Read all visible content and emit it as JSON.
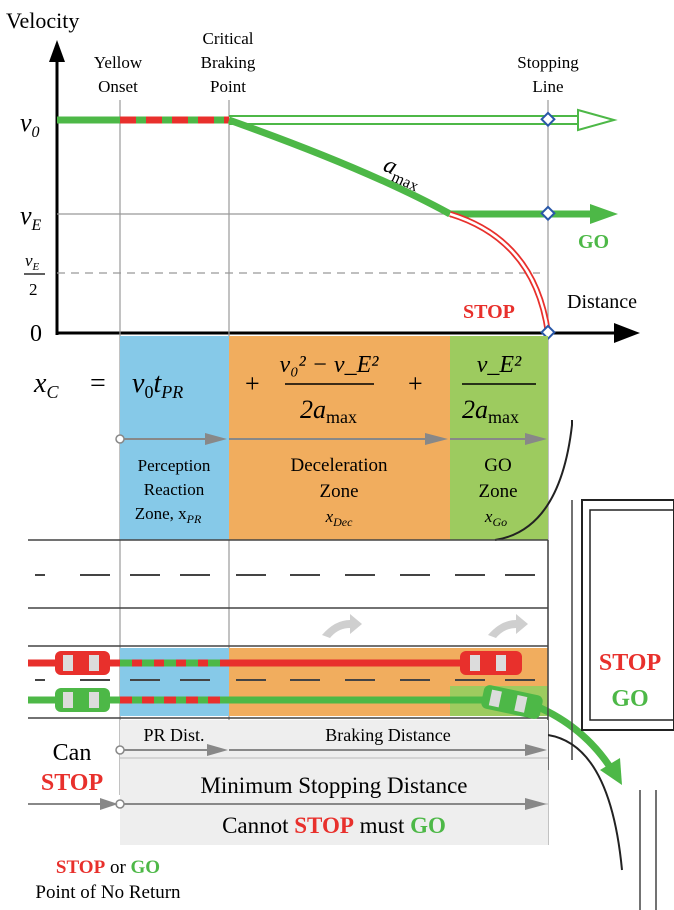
{
  "axes": {
    "y_label": "Velocity",
    "x_label": "Distance",
    "ticks": {
      "v0": "v",
      "v0_sub": "0",
      "vE": "v",
      "vE_sub": "E",
      "vhalf_num": "v",
      "vhalf_sub": "E",
      "vhalf_den": "2",
      "zero": "0"
    }
  },
  "markers": {
    "yellow_onset": [
      "Yellow",
      "Onset"
    ],
    "critical_point": [
      "Critical",
      "Braking",
      "Point"
    ],
    "stopping_line": [
      "Stopping",
      "Line"
    ]
  },
  "curve": {
    "accel": "a",
    "accel_sub": "max"
  },
  "labels": {
    "go": "GO",
    "stop": "STOP"
  },
  "equation": {
    "lhs_var": "x",
    "lhs_sub": "C",
    "equals": "=",
    "term1_v": "v",
    "term1_vsub": "0",
    "term1_t": "t",
    "term1_tsub": "PR",
    "plus": "+",
    "term2_num": "v₀² − v_E²",
    "term2_den": "2a",
    "term2_den_sub": "max",
    "term3_num": "v_E²",
    "term3_den": "2a",
    "term3_den_sub": "max"
  },
  "zones": {
    "pr": [
      "Perception",
      "Reaction",
      "Zone, x"
    ],
    "pr_sub": "PR",
    "dec": [
      "Deceleration",
      "Zone"
    ],
    "dec_var": "x",
    "dec_sub": "Dec",
    "go": [
      "GO",
      "Zone"
    ],
    "go_var": "x",
    "go_sub": "Go"
  },
  "bottom": {
    "pr_dist": "PR Dist.",
    "braking": "Braking Distance",
    "can": "Can",
    "stop": "STOP",
    "min_stop": "Minimum Stopping Distance",
    "cannot": "Cannot",
    "must": "must",
    "go": "GO",
    "or": "or",
    "ponr": "Point of No Return",
    "right_stop": "STOP",
    "right_go": "GO"
  },
  "colors": {
    "green": "#4db847",
    "red": "#e8302c",
    "blue": "#86c9e8",
    "orange": "#f1ad5e",
    "lightgreen": "#9dcb5f",
    "stopRed": "#e8302c"
  }
}
